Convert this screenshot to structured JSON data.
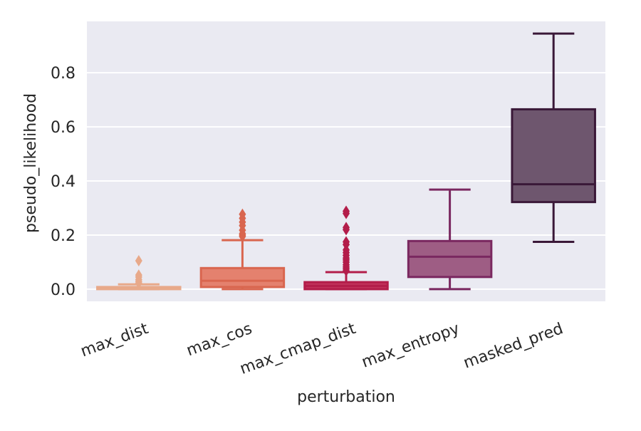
{
  "chart_data": {
    "type": "box",
    "xlabel": "perturbation",
    "ylabel": "pseudo_likelihood",
    "ylim": [
      -0.045,
      0.99
    ],
    "yticks": [
      0.0,
      0.2,
      0.4,
      0.6,
      0.8
    ],
    "ytick_labels": [
      "0.0",
      "0.2",
      "0.4",
      "0.6",
      "0.8"
    ],
    "grid": true,
    "legend": false,
    "categories": [
      "max_dist",
      "max_cos",
      "max_cmap_dist",
      "max_entropy",
      "masked_pred"
    ],
    "boxes": [
      {
        "category": "max_dist",
        "q1": 0.0,
        "median": 0.003,
        "q3": 0.008,
        "whisker_low": 0.0,
        "whisker_high": 0.018,
        "outliers": [
          0.022,
          0.028,
          0.035,
          0.045,
          0.052,
          0.105
        ],
        "color": "#e8a98a"
      },
      {
        "category": "max_cos",
        "q1": 0.008,
        "median": 0.031,
        "q3": 0.078,
        "whisker_low": 0.0,
        "whisker_high": 0.181,
        "outliers": [
          0.195,
          0.2,
          0.205,
          0.218,
          0.235,
          0.248,
          0.262,
          0.277
        ],
        "color": "#e4816e"
      },
      {
        "category": "max_cmap_dist",
        "q1": 0.0,
        "median": 0.012,
        "q3": 0.026,
        "whisker_low": 0.0,
        "whisker_high": 0.063,
        "outliers": [
          0.068,
          0.075,
          0.082,
          0.09,
          0.1,
          0.108,
          0.115,
          0.125,
          0.135,
          0.145,
          0.165,
          0.175,
          0.22,
          0.228,
          0.28,
          0.288
        ],
        "color": "#c0325a"
      },
      {
        "category": "max_entropy",
        "q1": 0.045,
        "median": 0.12,
        "q3": 0.178,
        "whisker_low": 0.0,
        "whisker_high": 0.368,
        "outliers": [],
        "color": "#9e5d84"
      },
      {
        "category": "masked_pred",
        "q1": 0.322,
        "median": 0.388,
        "q3": 0.665,
        "whisker_low": 0.175,
        "whisker_high": 0.945,
        "outliers": [],
        "color": "#6e566e"
      }
    ],
    "edge_colors": [
      "#e8a98a",
      "#d9664f",
      "#b31d4a",
      "#7a2860",
      "#3a1838"
    ]
  }
}
